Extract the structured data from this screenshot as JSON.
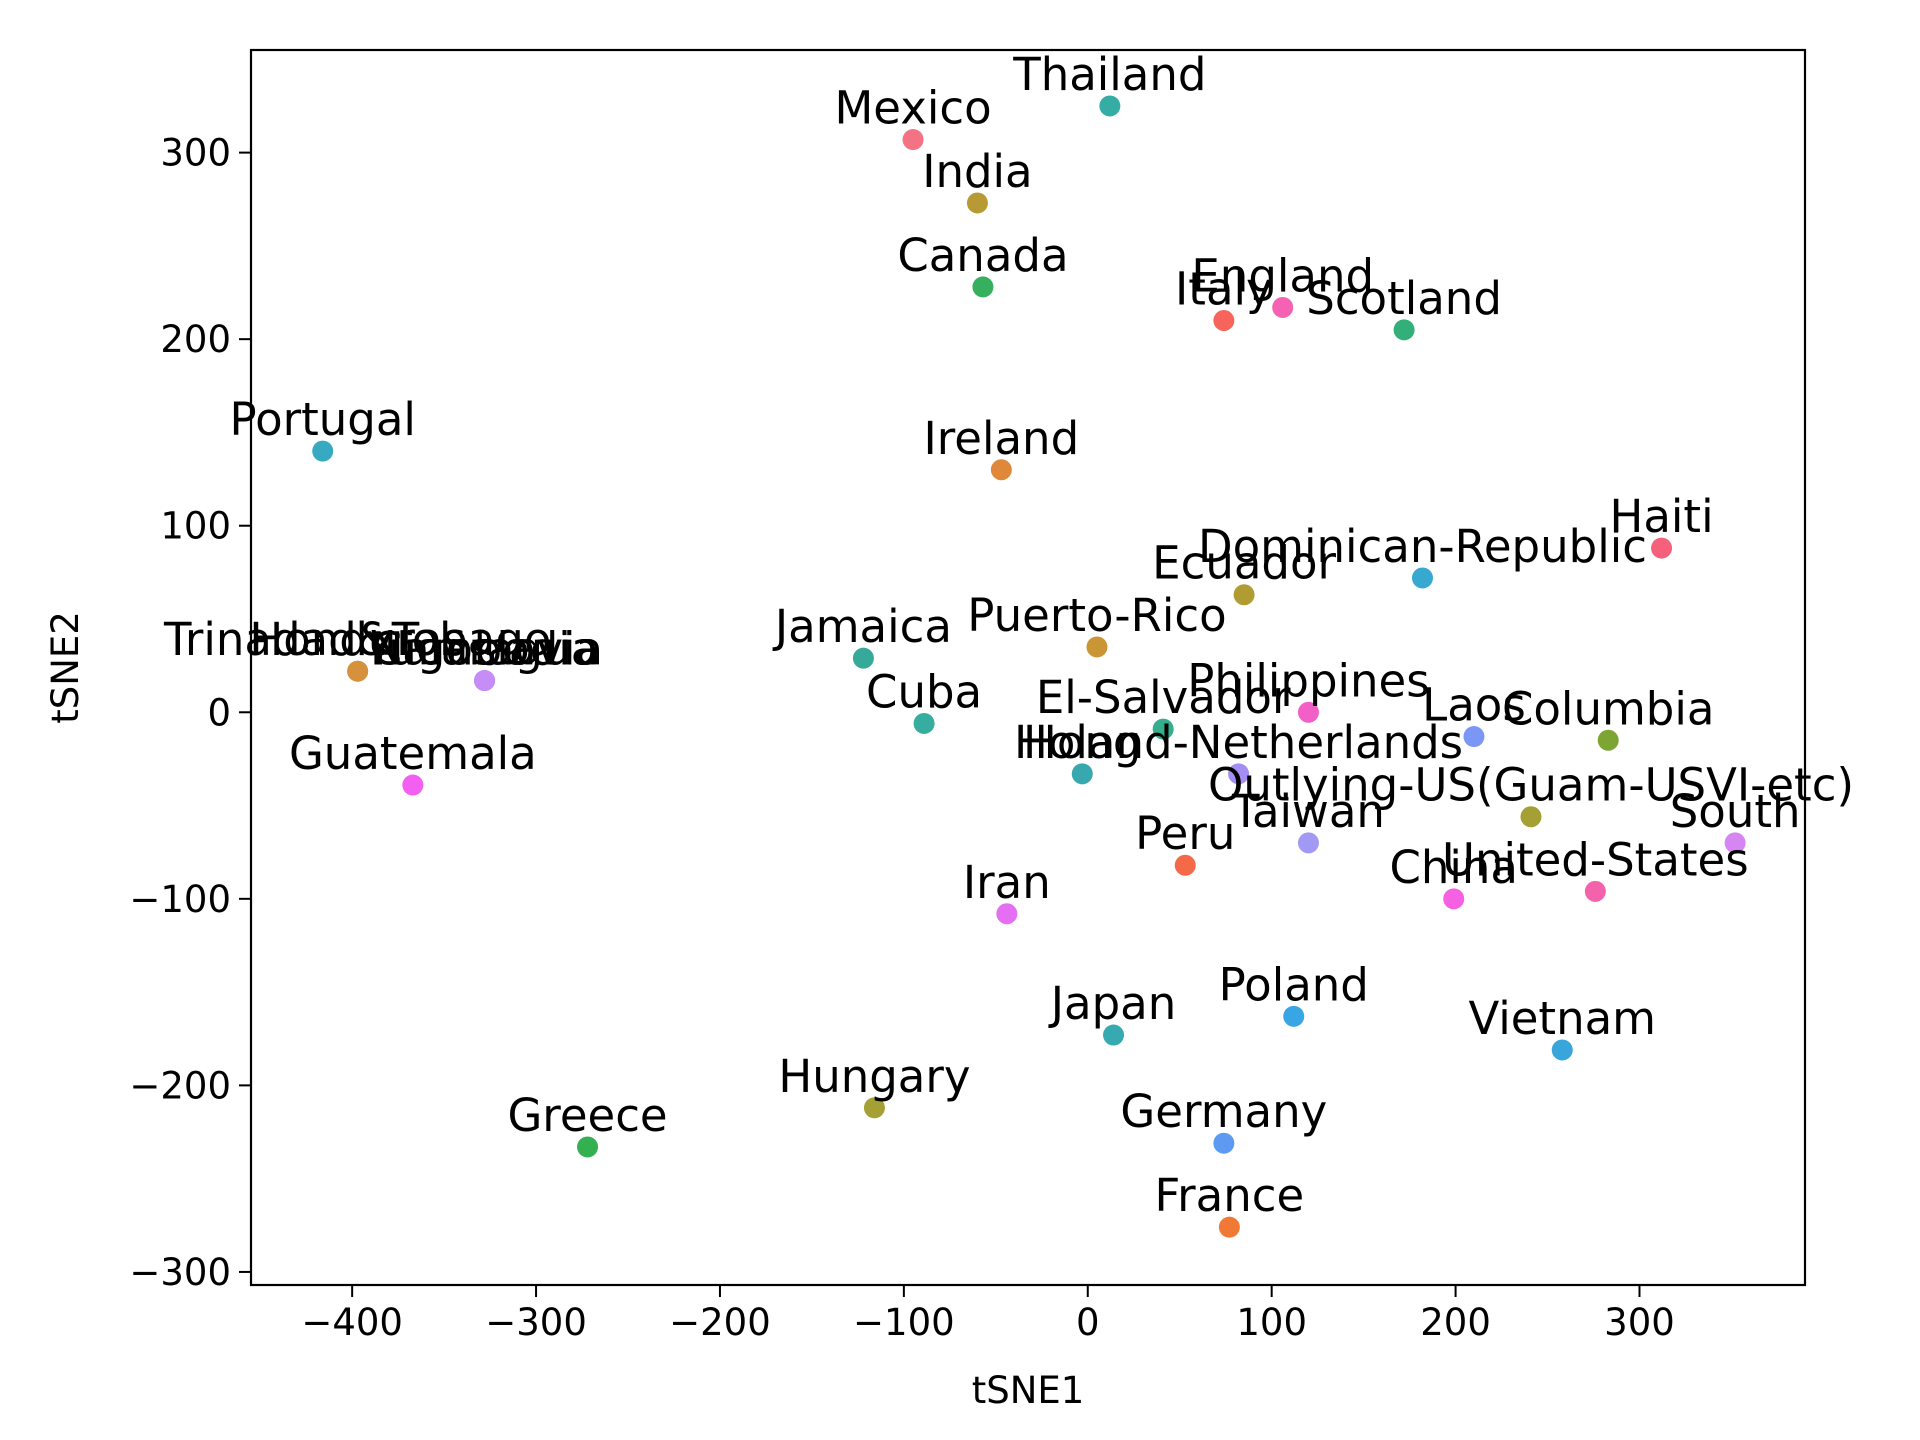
{
  "chart_data": {
    "type": "scatter",
    "xlabel": "tSNE1",
    "ylabel": "tSNE2",
    "xlim": [
      -455,
      390
    ],
    "ylim": [
      -307,
      355
    ],
    "xticks": [
      -400,
      -300,
      -200,
      -100,
      0,
      100,
      200,
      300
    ],
    "yticks": [
      -300,
      -200,
      -100,
      0,
      100,
      200,
      300
    ],
    "grid": false,
    "points": [
      {
        "label": "Thailand",
        "x": 12,
        "y": 325,
        "color": "#36ada4"
      },
      {
        "label": "Mexico",
        "x": -95,
        "y": 307,
        "color": "#f37284"
      },
      {
        "label": "India",
        "x": -60,
        "y": 273,
        "color": "#b89a35"
      },
      {
        "label": "Canada",
        "x": -57,
        "y": 228,
        "color": "#36b05e"
      },
      {
        "label": "England",
        "x": 106,
        "y": 217,
        "color": "#f561b3"
      },
      {
        "label": "Italy",
        "x": 74,
        "y": 210,
        "color": "#f7645b"
      },
      {
        "label": "Scotland",
        "x": 172,
        "y": 205,
        "color": "#33b07a"
      },
      {
        "label": "Portugal",
        "x": -416,
        "y": 140,
        "color": "#37aac2"
      },
      {
        "label": "Ireland",
        "x": -47,
        "y": 130,
        "color": "#e0883a"
      },
      {
        "label": "Haiti",
        "x": 312,
        "y": 88,
        "color": "#f5607a"
      },
      {
        "label": "Dominican-Republic",
        "x": 182,
        "y": 72,
        "color": "#37a9d0"
      },
      {
        "label": "Ecuador",
        "x": 85,
        "y": 63,
        "color": "#b19c34"
      },
      {
        "label": "Puerto-Rico",
        "x": 5,
        "y": 35,
        "color": "#c99535"
      },
      {
        "label": "Jamaica",
        "x": -122,
        "y": 29,
        "color": "#35aa9a"
      },
      {
        "label": "Honduras",
        "x": -397,
        "y": 22,
        "color": "#e08e3a"
      },
      {
        "label": "Trinadad&Tobago",
        "x": -397,
        "y": 22,
        "color": "#d5913b"
      },
      {
        "label": "Nicaragua",
        "x": -328,
        "y": 17,
        "color": "#c58df5"
      },
      {
        "label": "Yugoslavia",
        "x": -328,
        "y": 17,
        "color": "#b892f4"
      },
      {
        "label": "Cambodia",
        "x": -328,
        "y": 17,
        "color": "#c58df5"
      },
      {
        "label": "Philippines",
        "x": 120,
        "y": 0,
        "color": "#f25fc7"
      },
      {
        "label": "Cuba",
        "x": -89,
        "y": -6,
        "color": "#36ad9e"
      },
      {
        "label": "El-Salvador",
        "x": 41,
        "y": -9,
        "color": "#35ae8e"
      },
      {
        "label": "Laos",
        "x": 210,
        "y": -13,
        "color": "#7b97f5"
      },
      {
        "label": "Columbia",
        "x": 283,
        "y": -15,
        "color": "#7da534"
      },
      {
        "label": "Holand-Netherlands",
        "x": 82,
        "y": -33,
        "color": "#a48ef4"
      },
      {
        "label": "Hong",
        "x": -3,
        "y": -33,
        "color": "#37a8ad"
      },
      {
        "label": "Guatemala",
        "x": -367,
        "y": -39,
        "color": "#f35ff0"
      },
      {
        "label": "Outlying-US(Guam-USVI-etc)",
        "x": 241,
        "y": -56,
        "color": "#a4a034"
      },
      {
        "label": "Taiwan",
        "x": 120,
        "y": -70,
        "color": "#a299f4"
      },
      {
        "label": "South",
        "x": 352,
        "y": -70,
        "color": "#d586f2"
      },
      {
        "label": "Peru",
        "x": 53,
        "y": -82,
        "color": "#f46a49"
      },
      {
        "label": "United-States",
        "x": 276,
        "y": -96,
        "color": "#f562ac"
      },
      {
        "label": "China",
        "x": 199,
        "y": -100,
        "color": "#f561e2"
      },
      {
        "label": "Iran",
        "x": -44,
        "y": -108,
        "color": "#e46ff2"
      },
      {
        "label": "Poland",
        "x": 112,
        "y": -163,
        "color": "#38a5e4"
      },
      {
        "label": "Japan",
        "x": 14,
        "y": -173,
        "color": "#36aab0"
      },
      {
        "label": "Vietnam",
        "x": 258,
        "y": -181,
        "color": "#38a6da"
      },
      {
        "label": "Hungary",
        "x": -116,
        "y": -212,
        "color": "#a4a034"
      },
      {
        "label": "Germany",
        "x": 74,
        "y": -231,
        "color": "#5d9bf2"
      },
      {
        "label": "Greece",
        "x": -272,
        "y": -233,
        "color": "#35b050"
      },
      {
        "label": "France",
        "x": 77,
        "y": -276,
        "color": "#f07936"
      }
    ]
  }
}
